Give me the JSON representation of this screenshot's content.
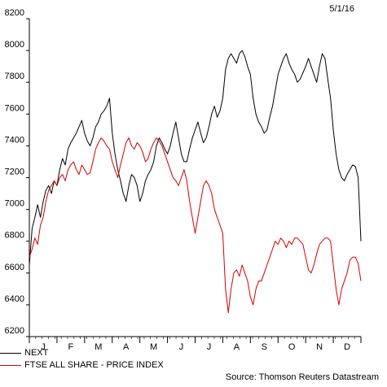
{
  "header": {
    "date": "5/1/16"
  },
  "source": "Source: Thomson Reuters Datastream",
  "chart_data": {
    "type": "line",
    "title": "",
    "xlabel": "",
    "ylabel": "",
    "ylim": [
      6200,
      8200
    ],
    "yticks": [
      6200,
      6400,
      6600,
      6800,
      7000,
      7200,
      7400,
      7600,
      7800,
      8000,
      8200
    ],
    "xlim": [
      0,
      12
    ],
    "x_month_labels": [
      "J",
      "F",
      "M",
      "A",
      "M",
      "J",
      "J",
      "A",
      "S",
      "O",
      "N",
      "D"
    ],
    "grid": false,
    "legend_position": "bottom-left",
    "series": [
      {
        "name": "NEXT",
        "color": "#000000",
        "x": [
          0.0,
          0.1,
          0.2,
          0.3,
          0.4,
          0.5,
          0.6,
          0.7,
          0.8,
          0.9,
          1.0,
          1.1,
          1.2,
          1.3,
          1.4,
          1.5,
          1.6,
          1.7,
          1.8,
          1.9,
          2.0,
          2.1,
          2.2,
          2.3,
          2.4,
          2.5,
          2.6,
          2.7,
          2.8,
          2.9,
          3.0,
          3.1,
          3.2,
          3.3,
          3.4,
          3.5,
          3.6,
          3.7,
          3.8,
          3.9,
          4.0,
          4.1,
          4.2,
          4.3,
          4.4,
          4.5,
          4.6,
          4.7,
          4.8,
          4.9,
          5.0,
          5.1,
          5.2,
          5.3,
          5.4,
          5.5,
          5.6,
          5.7,
          5.8,
          5.9,
          6.0,
          6.1,
          6.2,
          6.3,
          6.4,
          6.5,
          6.6,
          6.7,
          6.8,
          6.9,
          7.0,
          7.1,
          7.2,
          7.3,
          7.4,
          7.5,
          7.6,
          7.7,
          7.8,
          7.9,
          8.0,
          8.1,
          8.2,
          8.3,
          8.4,
          8.5,
          8.6,
          8.7,
          8.8,
          8.9,
          9.0,
          9.1,
          9.2,
          9.3,
          9.4,
          9.5,
          9.6,
          9.7,
          9.8,
          9.9,
          10.0,
          10.1,
          10.2,
          10.3,
          10.4,
          10.5,
          10.6,
          10.7,
          10.8,
          10.9,
          11.0,
          11.1,
          11.2,
          11.3,
          11.4,
          11.5,
          11.6,
          11.7,
          11.8,
          11.9,
          12.0
        ],
        "values": [
          6650,
          6880,
          6950,
          7030,
          6950,
          7050,
          7120,
          7150,
          7100,
          7180,
          7150,
          7250,
          7320,
          7280,
          7380,
          7420,
          7450,
          7480,
          7520,
          7560,
          7480,
          7430,
          7400,
          7450,
          7520,
          7550,
          7600,
          7620,
          7650,
          7700,
          7480,
          7350,
          7250,
          7180,
          7100,
          7050,
          7150,
          7220,
          7200,
          7150,
          7050,
          7100,
          7180,
          7220,
          7250,
          7300,
          7400,
          7450,
          7420,
          7380,
          7350,
          7400,
          7480,
          7550,
          7450,
          7350,
          7300,
          7300,
          7380,
          7450,
          7500,
          7550,
          7480,
          7420,
          7450,
          7520,
          7600,
          7650,
          7580,
          7620,
          7700,
          7880,
          7950,
          7980,
          7950,
          7920,
          7980,
          8000,
          7960,
          7900,
          7850,
          7700,
          7600,
          7550,
          7520,
          7480,
          7500,
          7580,
          7650,
          7750,
          7850,
          7900,
          7950,
          7980,
          7920,
          7880,
          7850,
          7800,
          7820,
          7860,
          7900,
          7950,
          7900,
          7850,
          7800,
          7900,
          7980,
          7950,
          7820,
          7700,
          7500,
          7350,
          7250,
          7200,
          7180,
          7220,
          7250,
          7280,
          7270,
          7200,
          6800
        ]
      },
      {
        "name": "FTSE ALL SHARE - PRICE INDEX",
        "color": "#d40000",
        "x": [
          0.0,
          0.1,
          0.2,
          0.3,
          0.4,
          0.5,
          0.6,
          0.7,
          0.8,
          0.9,
          1.0,
          1.1,
          1.2,
          1.3,
          1.4,
          1.5,
          1.6,
          1.7,
          1.8,
          1.9,
          2.0,
          2.1,
          2.2,
          2.3,
          2.4,
          2.5,
          2.6,
          2.7,
          2.8,
          2.9,
          3.0,
          3.1,
          3.2,
          3.3,
          3.4,
          3.5,
          3.6,
          3.7,
          3.8,
          3.9,
          4.0,
          4.1,
          4.2,
          4.3,
          4.4,
          4.5,
          4.6,
          4.7,
          4.8,
          4.9,
          5.0,
          5.1,
          5.2,
          5.3,
          5.4,
          5.5,
          5.6,
          5.7,
          5.8,
          5.9,
          6.0,
          6.1,
          6.2,
          6.3,
          6.4,
          6.5,
          6.6,
          6.7,
          6.8,
          6.9,
          7.0,
          7.1,
          7.2,
          7.3,
          7.4,
          7.5,
          7.6,
          7.7,
          7.8,
          7.9,
          8.0,
          8.1,
          8.2,
          8.3,
          8.4,
          8.5,
          8.6,
          8.7,
          8.8,
          8.9,
          9.0,
          9.1,
          9.2,
          9.3,
          9.4,
          9.5,
          9.6,
          9.7,
          9.8,
          9.9,
          10.0,
          10.1,
          10.2,
          10.3,
          10.4,
          10.5,
          10.6,
          10.7,
          10.8,
          10.9,
          11.0,
          11.1,
          11.2,
          11.3,
          11.4,
          11.5,
          11.6,
          11.7,
          11.8,
          11.9,
          12.0
        ],
        "values": [
          6700,
          6750,
          6820,
          6780,
          6900,
          6950,
          7050,
          7120,
          7150,
          7180,
          7150,
          7200,
          7220,
          7180,
          7250,
          7280,
          7300,
          7250,
          7220,
          7280,
          7250,
          7220,
          7230,
          7300,
          7380,
          7420,
          7450,
          7430,
          7400,
          7380,
          7300,
          7250,
          7200,
          7280,
          7350,
          7420,
          7450,
          7400,
          7380,
          7420,
          7400,
          7360,
          7300,
          7320,
          7380,
          7420,
          7450,
          7430,
          7400,
          7350,
          7300,
          7250,
          7200,
          7180,
          7150,
          7200,
          7250,
          7180,
          7050,
          6950,
          6850,
          6950,
          7050,
          7150,
          7180,
          7150,
          7100,
          7000,
          6950,
          6900,
          6850,
          6500,
          6350,
          6500,
          6600,
          6620,
          6580,
          6650,
          6600,
          6550,
          6450,
          6400,
          6500,
          6550,
          6550,
          6600,
          6650,
          6700,
          6750,
          6800,
          6780,
          6820,
          6800,
          6760,
          6800,
          6780,
          6820,
          6820,
          6800,
          6780,
          6700,
          6620,
          6600,
          6650,
          6720,
          6780,
          6800,
          6820,
          6820,
          6800,
          6650,
          6500,
          6400,
          6500,
          6550,
          6600,
          6680,
          6700,
          6700,
          6660,
          6550
        ]
      }
    ]
  }
}
